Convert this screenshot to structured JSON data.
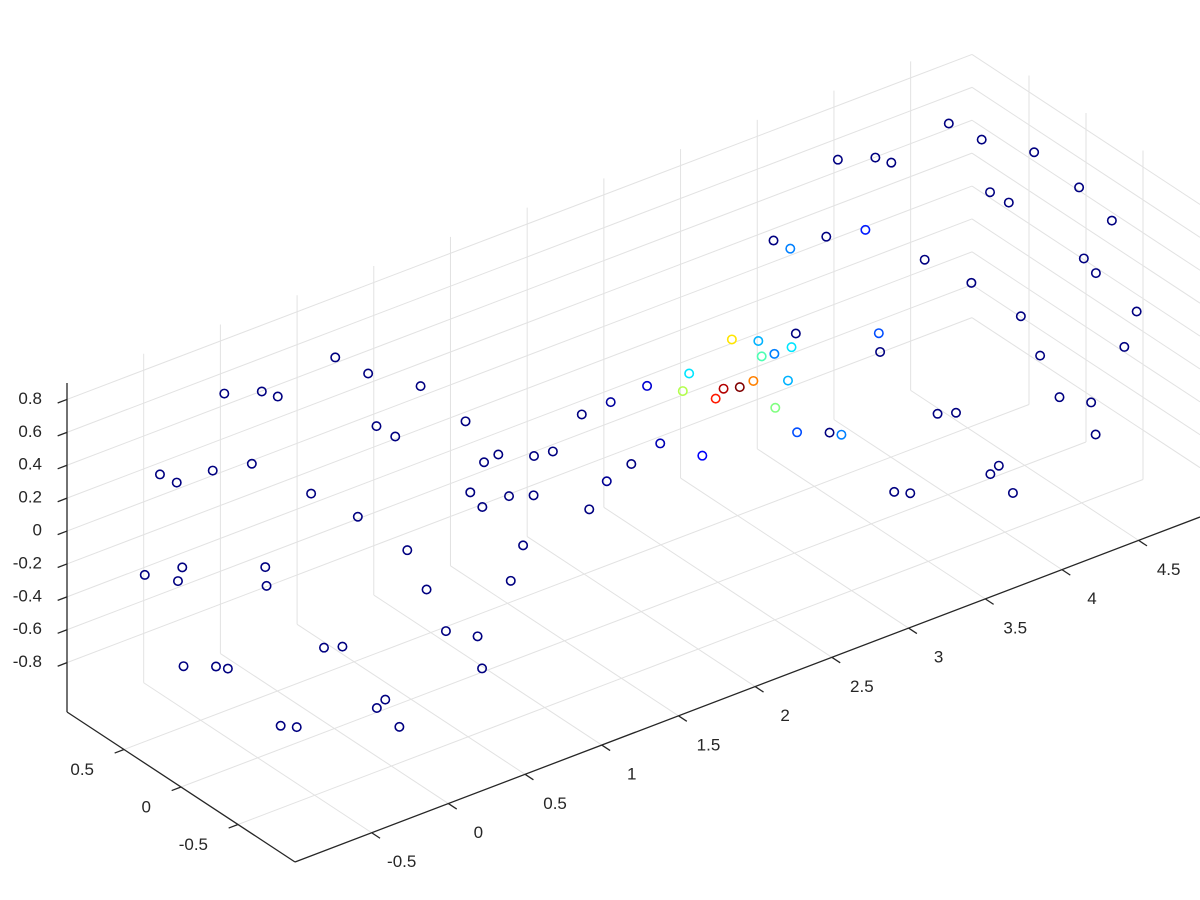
{
  "chart_data": {
    "type": "scatter3d",
    "x": [
      0.22,
      -0.28,
      0.04,
      0.34,
      -0.62,
      0.58,
      -0.19,
      -0.36,
      0.77,
      -0.79,
      0.37,
      0.27,
      -0.8,
      0.92,
      -0.55,
      -0.12,
      0.75,
      -0.99,
      0.71,
      -0.05,
      -0.64,
      0.99,
      -0.82,
      0.22,
      0.48,
      -0.91,
      0.86,
      -0.36,
      -0.3,
      0.78,
      -0.82,
      0.45,
      0.13,
      -0.58,
      0.69,
      -0.43,
      0,
      0.32,
      -0.38,
      0.18,
      4.22,
      3.72,
      4.04,
      4.34,
      3.38,
      4.58,
      3.81,
      3.64,
      4.77,
      3.21,
      4.37,
      4.27,
      3.2,
      4.92,
      3.45,
      3.88,
      4.75,
      3.01,
      4.71,
      3.95,
      3.36,
      4.99,
      3.18,
      4.22,
      4.48,
      3.09,
      4.86,
      3.64,
      3.7,
      4.78,
      3.18,
      4.45,
      4.13,
      3.42,
      4.69,
      3.57,
      4,
      4.32,
      3.62,
      4.18,
      1.05,
      1.15,
      1.25,
      1.35,
      1.45,
      1.55,
      1.65,
      1.75,
      1.85,
      1.95,
      2.05,
      2.15,
      2.25,
      2.35,
      2.42,
      2.5,
      2.56,
      2.62,
      2.68,
      2.74,
      2.8,
      2.86,
      2.92,
      2.98
    ],
    "y": [
      0,
      0.26,
      -0.48,
      0.45,
      -0.11,
      -0.37,
      0.71,
      -0.69,
      0.28,
      0.32,
      -0.8,
      0.86,
      -0.47,
      -0.2,
      0.79,
      -0.97,
      0.64,
      0.04,
      -0.7,
      1,
      -0.77,
      0.14,
      0.56,
      -0.96,
      0.85,
      -0.29,
      -0.39,
      0.85,
      -0.85,
      0.41,
      0.22,
      -0.69,
      0.77,
      -0.45,
      -0.05,
      0.46,
      -0.57,
      0.36,
      -0.04,
      -0.13,
      0,
      0.26,
      -0.48,
      0.45,
      -0.11,
      -0.37,
      0.71,
      -0.69,
      0.28,
      0.32,
      -0.8,
      0.86,
      -0.47,
      -0.2,
      0.79,
      -0.97,
      0.64,
      0.04,
      -0.7,
      1,
      -0.77,
      0.14,
      0.56,
      -0.96,
      0.85,
      -0.29,
      -0.39,
      0.85,
      -0.85,
      0.41,
      0.22,
      -0.69,
      0.77,
      -0.45,
      -0.05,
      0.46,
      -0.57,
      0.36,
      -0.04,
      -0.13,
      0.1,
      -0.2,
      0.15,
      -0.1,
      0.2,
      -0.15,
      0.05,
      -0.25,
      0.1,
      0.2,
      -0.1,
      0.15,
      -0.2,
      0.05,
      0.2,
      -0.05,
      0.1,
      -0.15,
      0.05,
      0.2,
      -0.1,
      0.1,
      -0.05,
      0.15
    ],
    "z": [
      0.98,
      0.93,
      0.88,
      0.83,
      0.78,
      0.73,
      0.68,
      0.63,
      0.58,
      0.53,
      0.48,
      0.43,
      0.38,
      0.33,
      0.28,
      0.23,
      0.18,
      0.13,
      0.08,
      0.03,
      -0.03,
      -0.08,
      -0.13,
      -0.18,
      -0.23,
      -0.28,
      -0.33,
      -0.38,
      -0.43,
      -0.48,
      -0.53,
      -0.58,
      -0.63,
      -0.68,
      -0.73,
      -0.78,
      -0.83,
      -0.88,
      -0.93,
      -0.98,
      0.98,
      0.93,
      0.88,
      0.83,
      0.78,
      0.73,
      0.68,
      0.63,
      0.58,
      0.53,
      0.48,
      0.43,
      0.38,
      0.33,
      0.28,
      0.23,
      0.18,
      0.13,
      0.08,
      0.03,
      -0.03,
      -0.08,
      -0.13,
      -0.18,
      -0.23,
      -0.28,
      -0.33,
      -0.38,
      -0.43,
      -0.48,
      -0.53,
      -0.58,
      -0.63,
      -0.68,
      -0.73,
      -0.78,
      -0.83,
      -0.88,
      -0.93,
      -0.98,
      0.1,
      0,
      -0.2,
      0.15,
      -0.05,
      -0.25,
      0.2,
      0,
      -0.3,
      0.1,
      -0.05,
      0.15,
      -0.15,
      0.2,
      0,
      0.1,
      -0.05,
      0.15,
      0,
      0.2,
      -0.1,
      0.1,
      0,
      0.05
    ],
    "c": [
      0,
      0,
      0,
      0,
      0,
      0,
      0,
      0,
      0,
      0,
      0,
      0,
      0,
      0,
      0,
      0,
      0,
      0,
      0,
      0,
      0,
      0,
      0,
      0,
      0,
      0,
      0,
      0,
      0,
      0,
      0,
      0,
      0,
      0,
      0,
      0,
      0,
      0,
      0,
      0,
      0,
      0,
      0,
      0,
      0.15,
      0,
      0,
      0,
      0,
      0.25,
      0,
      0,
      0.2,
      0,
      0,
      0,
      0,
      0.35,
      0,
      0,
      0,
      0,
      0.3,
      0,
      0,
      0.25,
      0,
      0,
      0,
      0,
      0.2,
      0,
      0,
      0,
      0,
      0,
      0,
      0,
      0,
      0,
      0,
      0,
      0,
      0,
      0,
      0,
      0,
      0,
      0.02,
      0.03,
      0.05,
      0.08,
      0.12,
      0.35,
      0.55,
      0.95,
      0.85,
      0.75,
      1,
      0.65,
      0.5,
      0.45,
      0.3,
      0.25
    ],
    "colormap": "jet",
    "clim": [
      0,
      1
    ],
    "marker": "circle",
    "xlim": [
      -1,
      4.9
    ],
    "ylim": [
      -1,
      1
    ],
    "zlim": [
      -1.1,
      0.9
    ],
    "xticks": [
      -0.5,
      0,
      0.5,
      1,
      1.5,
      2,
      2.5,
      3,
      3.5,
      4,
      4.5
    ],
    "yticks": [
      -0.5,
      0,
      0.5
    ],
    "zticks": [
      -0.8,
      -0.6,
      -0.4,
      -0.2,
      0,
      0.2,
      0.4,
      0.6,
      0.8
    ],
    "grid": true
  }
}
